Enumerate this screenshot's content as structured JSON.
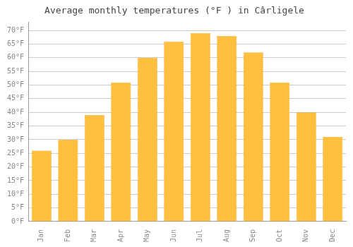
{
  "chart_data": {
    "type": "bar",
    "title": "Average monthly temperatures (°F ) in Cârligele",
    "categories": [
      "Jan",
      "Feb",
      "Mar",
      "Apr",
      "May",
      "Jun",
      "Jul",
      "Aug",
      "Sep",
      "Oct",
      "Nov",
      "Dec"
    ],
    "values": [
      26,
      30,
      39,
      51,
      60,
      66,
      69,
      68,
      62,
      51,
      40,
      31
    ],
    "color": "#FFC040",
    "ylim": [
      0,
      73
    ],
    "yticks": [
      {
        "value": 0,
        "label": "0°F"
      },
      {
        "value": 5,
        "label": "5°F"
      },
      {
        "value": 10,
        "label": "10°F"
      },
      {
        "value": 15,
        "label": "15°F"
      },
      {
        "value": 20,
        "label": "20°F"
      },
      {
        "value": 25,
        "label": "25°F"
      },
      {
        "value": 30,
        "label": "30°F"
      },
      {
        "value": 35,
        "label": "35°F"
      },
      {
        "value": 40,
        "label": "40°F"
      },
      {
        "value": 45,
        "label": "45°F"
      },
      {
        "value": 50,
        "label": "50°F"
      },
      {
        "value": 55,
        "label": "55°F"
      },
      {
        "value": 60,
        "label": "60°F"
      },
      {
        "value": 65,
        "label": "65°F"
      },
      {
        "value": 70,
        "label": "70°F"
      }
    ],
    "grid": true
  }
}
